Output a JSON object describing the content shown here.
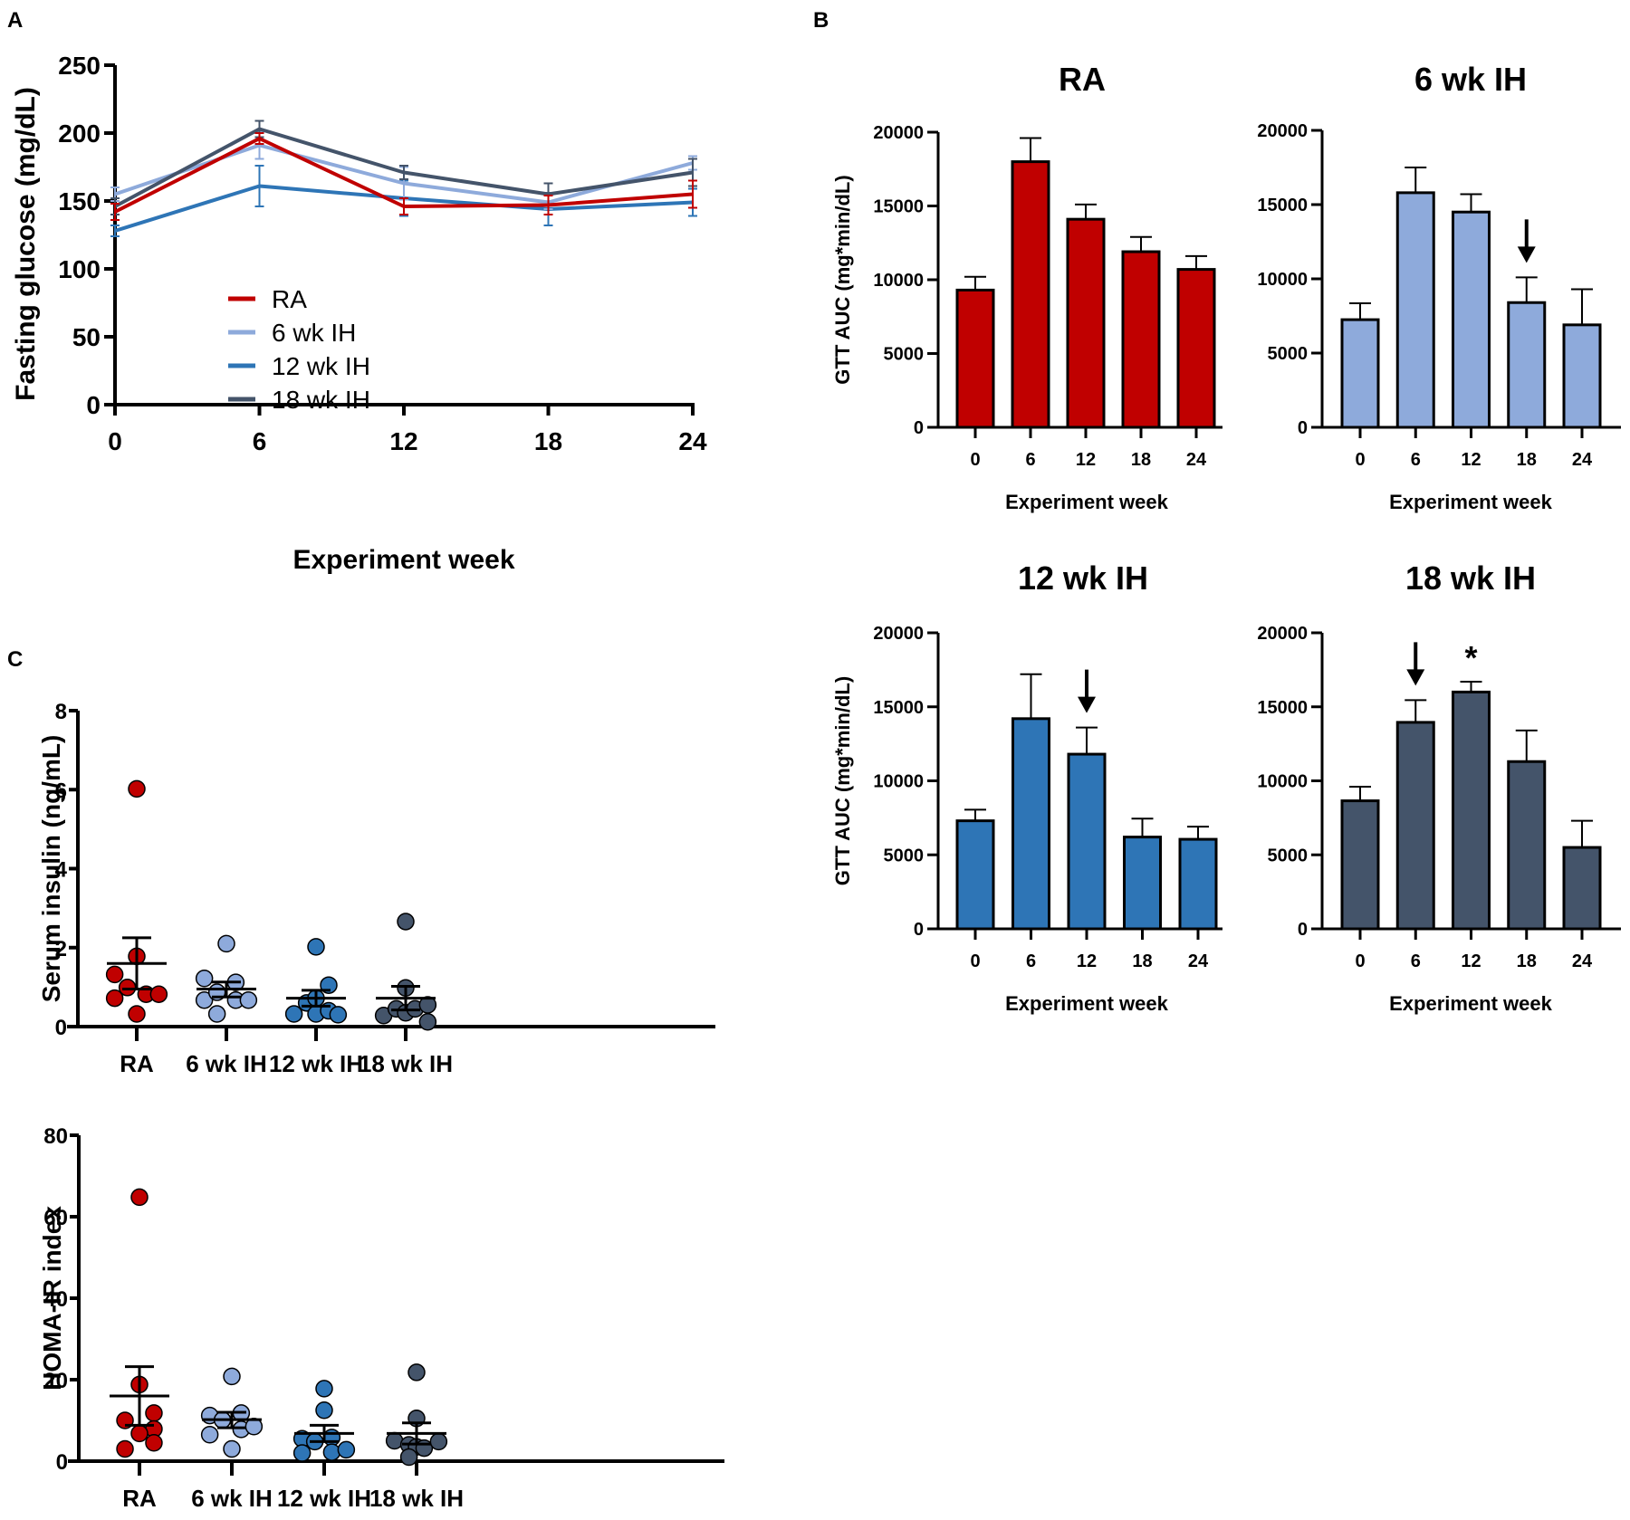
{
  "colors": {
    "RA": "#c00000",
    "6 wk IH": "#8eaadb",
    "12 wk IH": "#2e75b6",
    "18 wk IH": "#44546a"
  },
  "chart_data": [
    {
      "id": "A",
      "panel_label": "A",
      "type": "line",
      "title": "",
      "xlabel": "Experiment week",
      "ylabel": "Fasting glucose (mg/dL)",
      "x": [
        0,
        6,
        12,
        18,
        24
      ],
      "xticks": [
        "0",
        "6",
        "12",
        "18",
        "24"
      ],
      "yticks": [
        "0",
        "50",
        "100",
        "150",
        "200",
        "250"
      ],
      "ylim": [
        0,
        250
      ],
      "xlim": [
        0,
        24
      ],
      "legend_position": "center-left",
      "series": [
        {
          "name": "RA",
          "values": [
            142,
            196,
            146,
            147,
            155
          ],
          "err": [
            6,
            4,
            6,
            7,
            10
          ]
        },
        {
          "name": "6 wk IH",
          "values": [
            155,
            191,
            163,
            149,
            178
          ],
          "err": [
            5,
            10,
            12,
            5,
            5
          ]
        },
        {
          "name": "12 wk IH",
          "values": [
            128,
            161,
            152,
            144,
            149
          ],
          "err": [
            4,
            15,
            13,
            12,
            10
          ]
        },
        {
          "name": "18 wk IH",
          "values": [
            146,
            203,
            171,
            155,
            171
          ],
          "err": [
            6,
            6,
            5,
            8,
            10
          ]
        }
      ]
    },
    {
      "id": "B-RA",
      "panel_label": "B",
      "type": "bar",
      "title": "RA",
      "group": "RA",
      "xlabel": "Experiment week",
      "ylabel": "GTT AUC (mg*min/dL)",
      "categories": [
        "0",
        "6",
        "12",
        "18",
        "24"
      ],
      "values": [
        9300,
        18000,
        14100,
        11900,
        10700
      ],
      "err": [
        900,
        1600,
        1000,
        1000,
        900
      ],
      "yticks": [
        "0",
        "5000",
        "10000",
        "15000",
        "20000"
      ],
      "ylim": [
        0,
        20000
      ],
      "annotations": []
    },
    {
      "id": "B-6wk",
      "type": "bar",
      "title": "6 wk IH",
      "group": "6 wk IH",
      "xlabel": "Experiment week",
      "ylabel": "",
      "categories": [
        "0",
        "6",
        "12",
        "18",
        "24"
      ],
      "values": [
        7250,
        15800,
        14500,
        8400,
        6900
      ],
      "err": [
        1100,
        1700,
        1200,
        1700,
        2400
      ],
      "yticks": [
        "0",
        "5000",
        "10000",
        "15000",
        "20000"
      ],
      "ylim": [
        0,
        20000
      ],
      "annotations": [
        {
          "category": "18",
          "symbol": "arrow-down"
        }
      ]
    },
    {
      "id": "B-12wk",
      "type": "bar",
      "title": "12 wk IH",
      "group": "12 wk IH",
      "xlabel": "Experiment week",
      "ylabel": "GTT AUC (mg*min/dL)",
      "categories": [
        "0",
        "6",
        "12",
        "18",
        "24"
      ],
      "values": [
        7300,
        14200,
        11800,
        6200,
        6050
      ],
      "err": [
        750,
        3000,
        1800,
        1250,
        850
      ],
      "yticks": [
        "0",
        "5000",
        "10000",
        "15000",
        "20000"
      ],
      "ylim": [
        0,
        20000
      ],
      "annotations": [
        {
          "category": "12",
          "symbol": "arrow-down"
        }
      ]
    },
    {
      "id": "B-18wk",
      "type": "bar",
      "title": "18 wk IH",
      "group": "18 wk IH",
      "xlabel": "Experiment week",
      "ylabel": "",
      "categories": [
        "0",
        "6",
        "12",
        "18",
        "24"
      ],
      "values": [
        8650,
        13950,
        16000,
        11300,
        5500
      ],
      "err": [
        950,
        1500,
        700,
        2100,
        1800
      ],
      "yticks": [
        "0",
        "5000",
        "10000",
        "15000",
        "20000"
      ],
      "ylim": [
        0,
        20000
      ],
      "annotations": [
        {
          "category": "6",
          "symbol": "arrow-down"
        },
        {
          "category": "12",
          "symbol": "*"
        }
      ]
    },
    {
      "id": "C-insulin",
      "panel_label": "C",
      "type": "scatter",
      "title": "",
      "xlabel": "",
      "ylabel": "Serum insulin (ng/mL)",
      "categories": [
        "RA",
        "6 wk IH",
        "12 wk IH",
        "18 wk IH"
      ],
      "yticks": [
        "0",
        "2",
        "4",
        "6",
        "8"
      ],
      "ylim": [
        0,
        8
      ],
      "groups": [
        {
          "name": "RA",
          "points": [
            [
              0,
              6.02
            ],
            [
              0,
              1.78
            ],
            [
              -0.87,
              1.32
            ],
            [
              -0.87,
              0.72
            ],
            [
              -0.37,
              0.99
            ],
            [
              0.37,
              0.82
            ],
            [
              0.87,
              0.82
            ],
            [
              0,
              0.32
            ]
          ],
          "mean": 1.6,
          "sem_low": 0.95,
          "sem_high": 2.25
        },
        {
          "name": "6 wk IH",
          "points": [
            [
              0,
              2.1
            ],
            [
              -0.87,
              1.22
            ],
            [
              -0.87,
              0.67
            ],
            [
              -0.37,
              0.87
            ],
            [
              0.37,
              1.12
            ],
            [
              0.37,
              0.67
            ],
            [
              0.87,
              0.67
            ],
            [
              -0.37,
              0.32
            ]
          ],
          "mean": 0.95,
          "sem_low": 0.75,
          "sem_high": 1.13
        },
        {
          "name": "12 wk IH",
          "points": [
            [
              0,
              2.02
            ],
            [
              0.5,
              1.05
            ],
            [
              -0.37,
              0.6
            ],
            [
              0,
              0.72
            ],
            [
              -0.87,
              0.32
            ],
            [
              0,
              0.32
            ],
            [
              0.5,
              0.4
            ],
            [
              0.87,
              0.3
            ]
          ],
          "mean": 0.72,
          "sem_low": 0.52,
          "sem_high": 0.92
        },
        {
          "name": "18 wk IH",
          "points": [
            [
              0,
              2.66
            ],
            [
              0,
              0.98
            ],
            [
              -0.87,
              0.28
            ],
            [
              -0.37,
              0.45
            ],
            [
              0,
              0.35
            ],
            [
              0.37,
              0.45
            ],
            [
              0.87,
              0.55
            ],
            [
              0.87,
              0.12
            ]
          ],
          "mean": 0.72,
          "sem_low": 0.42,
          "sem_high": 1.02
        }
      ]
    },
    {
      "id": "C-homa",
      "type": "scatter",
      "title": "",
      "xlabel": "",
      "ylabel": "HOMA-IR index",
      "categories": [
        "RA",
        "6 wk IH",
        "12 wk IH",
        "18 wk IH"
      ],
      "yticks": [
        "0",
        "20",
        "40",
        "60",
        "80"
      ],
      "ylim": [
        0,
        80
      ],
      "groups": [
        {
          "name": "RA",
          "points": [
            [
              0,
              64.8
            ],
            [
              0,
              18.8
            ],
            [
              -0.57,
              10.0
            ],
            [
              0.57,
              11.8
            ],
            [
              0.57,
              7.9
            ],
            [
              0,
              6.8
            ],
            [
              0.57,
              4.5
            ],
            [
              -0.57,
              3.0
            ]
          ],
          "mean": 16.0,
          "sem_low": 8.8,
          "sem_high": 23.2
        },
        {
          "name": "6 wk IH",
          "points": [
            [
              0,
              20.8
            ],
            [
              -0.87,
              11.2
            ],
            [
              -0.37,
              10.1
            ],
            [
              0.37,
              11.8
            ],
            [
              0.37,
              7.8
            ],
            [
              -0.87,
              6.5
            ],
            [
              0.87,
              8.5
            ],
            [
              0,
              3.0
            ]
          ],
          "mean": 10.2,
          "sem_low": 8.2,
          "sem_high": 12.0
        },
        {
          "name": "12 wk IH",
          "points": [
            [
              0,
              17.8
            ],
            [
              0,
              12.5
            ],
            [
              -0.87,
              5.5
            ],
            [
              -0.37,
              4.8
            ],
            [
              0.3,
              5.8
            ],
            [
              -0.87,
              2.0
            ],
            [
              0.3,
              2.2
            ],
            [
              0.87,
              2.8
            ]
          ],
          "mean": 6.8,
          "sem_low": 4.8,
          "sem_high": 8.8
        },
        {
          "name": "18 wk IH",
          "points": [
            [
              0,
              21.8
            ],
            [
              0,
              10.5
            ],
            [
              -0.87,
              5.0
            ],
            [
              -0.3,
              4.0
            ],
            [
              0,
              3.5
            ],
            [
              0.3,
              3.2
            ],
            [
              0.87,
              4.8
            ],
            [
              -0.3,
              1.0
            ]
          ],
          "mean": 6.8,
          "sem_low": 4.2,
          "sem_high": 9.4
        }
      ]
    }
  ]
}
